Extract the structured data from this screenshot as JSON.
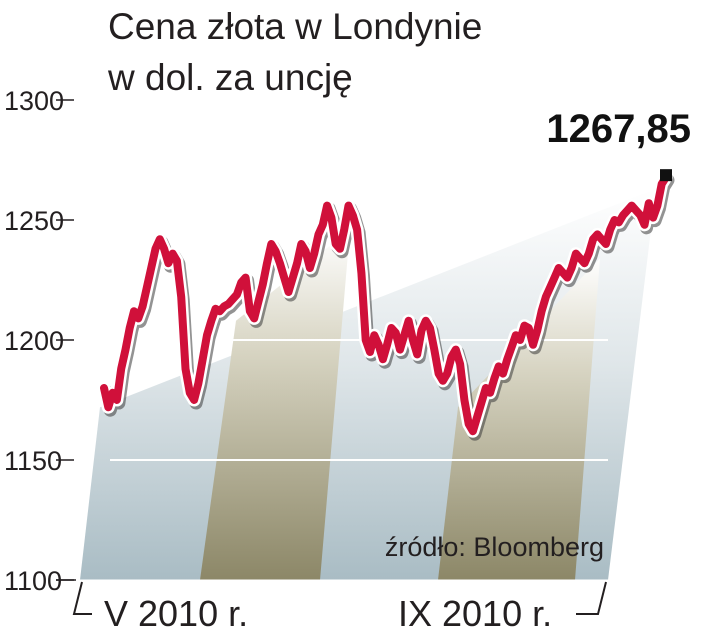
{
  "title": {
    "line1": "Cena złota w Londynie",
    "line2": "w dol. za uncję"
  },
  "source": "źródło: Bloomberg",
  "last_value_label": "1267,85",
  "colors": {
    "line": "#d0103a",
    "line_shadow": "#3a3a3a",
    "band_dark": "#9f9a7a",
    "band_light": "#bfcbd0",
    "text": "#231f20"
  },
  "chart_data": {
    "type": "line",
    "title": "Cena złota w Londynie w dol. za uncję",
    "ylim": [
      1100,
      1300
    ],
    "yticks": [
      1100,
      1150,
      1200,
      1250,
      1300
    ],
    "ytick_labels": [
      "1100",
      "1150",
      "1200",
      "1250",
      "1300"
    ],
    "xtick_labels": [
      "V 2010 r.",
      "IX 2010 r."
    ],
    "grid": true,
    "annotation": "1267,85",
    "series": [
      {
        "values": [
          1180,
          1172,
          1178,
          1175,
          1188,
          1196,
          1205,
          1212,
          1209,
          1214,
          1222,
          1230,
          1238,
          1242,
          1238,
          1232,
          1236,
          1233,
          1218,
          1188,
          1178,
          1175,
          1182,
          1192,
          1202,
          1208,
          1213,
          1212,
          1214,
          1215,
          1217,
          1219,
          1224,
          1226,
          1212,
          1209,
          1216,
          1223,
          1232,
          1240,
          1237,
          1232,
          1226,
          1220,
          1226,
          1232,
          1240,
          1237,
          1230,
          1236,
          1244,
          1248,
          1256,
          1251,
          1240,
          1238,
          1246,
          1256,
          1252,
          1246,
          1228,
          1200,
          1195,
          1202,
          1198,
          1192,
          1198,
          1205,
          1203,
          1196,
          1202,
          1208,
          1200,
          1194,
          1204,
          1208,
          1205,
          1196,
          1186,
          1183,
          1186,
          1193,
          1196,
          1190,
          1175,
          1165,
          1162,
          1168,
          1174,
          1180,
          1178,
          1184,
          1189,
          1186,
          1192,
          1197,
          1202,
          1200,
          1206,
          1205,
          1198,
          1204,
          1212,
          1218,
          1222,
          1226,
          1230,
          1228,
          1226,
          1230,
          1236,
          1234,
          1232,
          1236,
          1242,
          1244,
          1242,
          1240,
          1246,
          1250,
          1249,
          1252,
          1254,
          1256,
          1254,
          1252,
          1248,
          1257,
          1251,
          1256,
          1265,
          1267.85
        ]
      }
    ]
  }
}
